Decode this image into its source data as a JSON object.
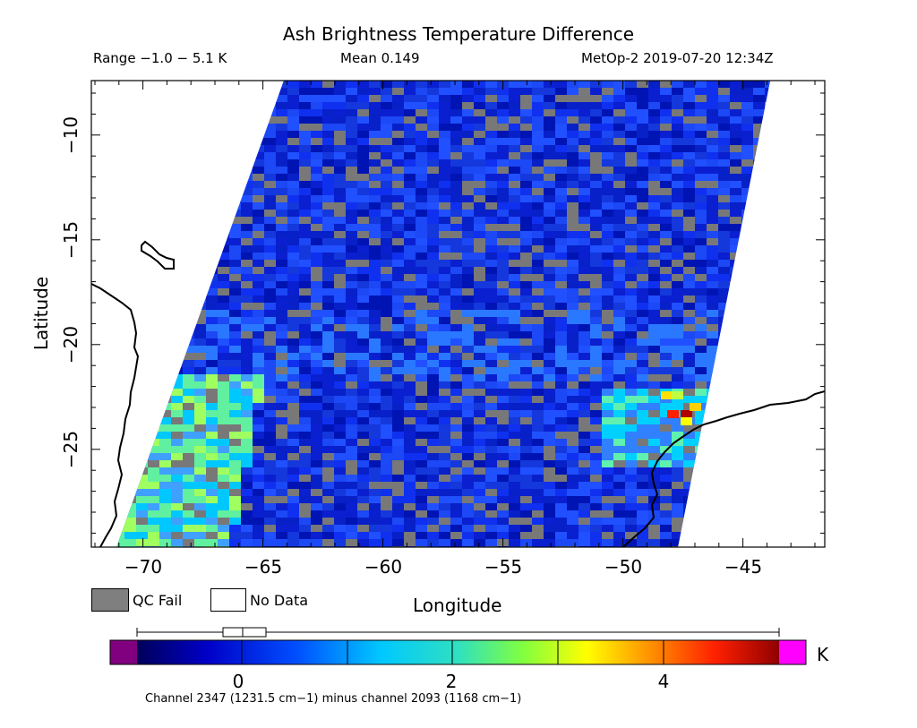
{
  "header": {
    "title": "Ash Brightness Temperature Difference",
    "range": "Range −1.0 − 5.1 K",
    "mean": "Mean 0.149",
    "satellite_time": "MetOp-2 2019-07-20 12:34Z"
  },
  "axes": {
    "ylabel": "Latitude",
    "xlabel": "Longitude",
    "yticks": [
      "−10",
      "−15",
      "−20",
      "−25"
    ],
    "xticks": [
      "−70",
      "−65",
      "−60",
      "−55",
      "−50",
      "−45"
    ]
  },
  "legend": {
    "qc_fail": "QC Fail",
    "no_data": "No Data",
    "qc_fail_color": "#7f7f7f",
    "no_data_color": "#ffffff"
  },
  "colorbar": {
    "unit": "K",
    "ticks": [
      "0",
      "2",
      "4"
    ],
    "min": -1.0,
    "max": 5.1,
    "underflow_color": "#800080",
    "overflow_color": "#ff00ff",
    "stops": [
      "#00005a",
      "#0000c8",
      "#0050ff",
      "#00c8ff",
      "#30e0c0",
      "#80ff40",
      "#ffff00",
      "#ff9000",
      "#ff2000",
      "#900000"
    ]
  },
  "footnote": "Channel 2347 (1231.5 cm−1) minus channel 2093 (1168 cm−1)",
  "swath": {
    "description_colors": {
      "background_blue": "#1436e6",
      "hotspot": "#c80000"
    }
  }
}
